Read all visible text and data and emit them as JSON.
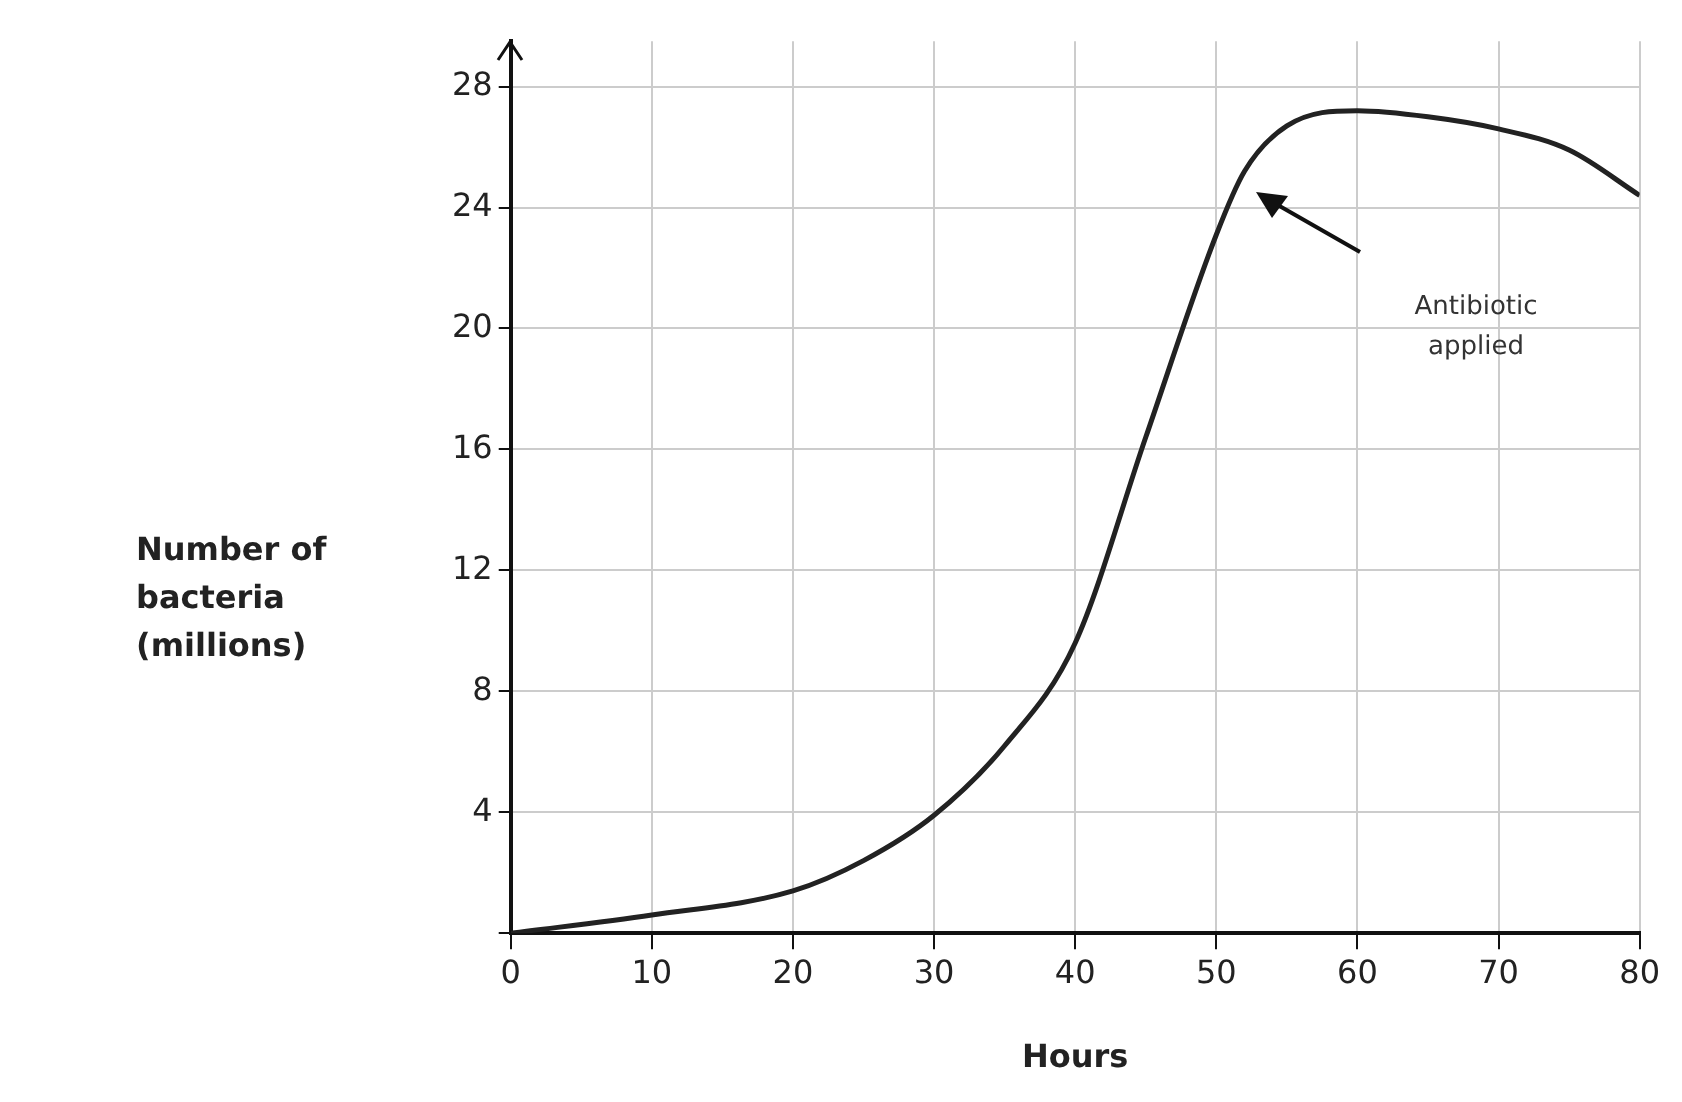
{
  "chart_data": {
    "type": "line",
    "xlabel": "Hours",
    "ylabel": "Number of bacteria (millions)",
    "x": [
      0,
      10,
      20,
      25,
      30,
      35,
      40,
      45,
      50,
      52,
      55,
      60,
      65,
      70,
      75,
      80
    ],
    "series": [
      {
        "color": "#222222",
        "values": [
          0,
          0.6,
          1.4,
          2.4,
          3.9,
          6.2,
          9.6,
          16.4,
          23.1,
          25.2,
          26.7,
          27.2,
          27.0,
          26.6,
          25.9,
          24.4
        ]
      }
    ],
    "xlim": [
      0,
      80
    ],
    "xticks": [
      0,
      10,
      20,
      30,
      40,
      50,
      60,
      70,
      80
    ],
    "ylim": [
      0,
      29.5
    ],
    "yticks": [
      {
        "value": 0,
        "label": null
      },
      4,
      8,
      12,
      16,
      20,
      24,
      28
    ],
    "annotations": [
      "Antibiotic applied"
    ],
    "grid": true,
    "legend": false,
    "marker": "none",
    "line_style": "solid"
  }
}
